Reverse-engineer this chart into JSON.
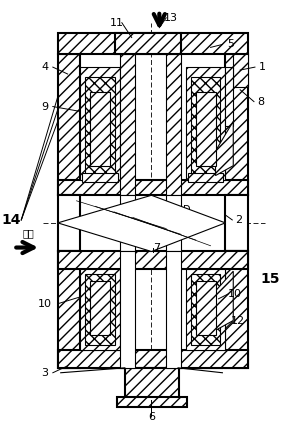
{
  "bg_color": "#ffffff",
  "black": "#000000",
  "fig_width": 3.01,
  "fig_height": 4.3,
  "dpi": 100
}
